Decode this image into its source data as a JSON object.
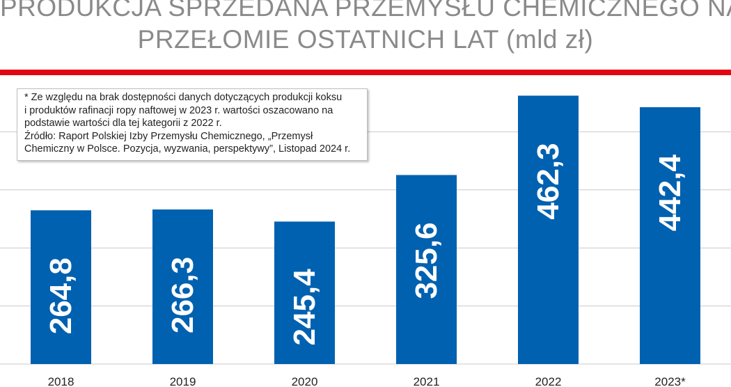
{
  "title_lines": [
    "PRODUKCJA SPRZEDANA PRZEMYSŁU CHEMICZNEGO NA",
    "PRZEŁOMIE OSTATNICH LAT (mld zł)"
  ],
  "note": {
    "line1": "* Ze względu na brak dostępności danych dotyczących produkcji koksu",
    "line2": "i produktów rafinacji ropy naftowej w 2023 r. wartości oszacowano na",
    "line3": "podstawie wartości dla tej kategorii z 2022 r.",
    "line4": "Źródło: Raport Polskiej Izby Przemysłu Chemicznego, „Przemysł",
    "line5": "Chemiczny w Polsce. Pozycja, wyzwania, perspektywy”, Listopad 2024 r."
  },
  "colors": {
    "bar": "#0061b0",
    "accent_rule": "#e30613",
    "grid": "#c8c8c8",
    "title": "#8a8a8a"
  },
  "chart_data": {
    "type": "bar",
    "title": "PRODUKCJA SPRZEDANA PRZEMYSŁU CHEMICZNEGO NA PRZEŁOMIE OSTATNICH LAT (mld zł)",
    "categories": [
      "2018",
      "2019",
      "2020",
      "2021",
      "2022",
      "2023*"
    ],
    "values": [
      264.8,
      266.3,
      245.4,
      325.6,
      462.3,
      442.4
    ],
    "value_labels": [
      "264,8",
      "266,3",
      "245,4",
      "325,6",
      "462,3",
      "442,4"
    ],
    "ylim": [
      0,
      500
    ],
    "grid": true,
    "legend": "none"
  }
}
